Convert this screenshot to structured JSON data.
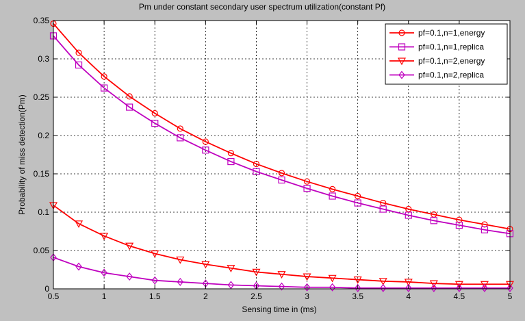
{
  "chart_data": {
    "type": "line",
    "title": "Pm under constant secondary user spectrum utilization(constant Pf)",
    "xlabel": "Sensing time in  (ms)",
    "ylabel": "Probability of miss detection(Pm)",
    "xlim": [
      0.5,
      5
    ],
    "ylim": [
      0,
      0.35
    ],
    "xticks": [
      0.5,
      1,
      1.5,
      2,
      2.5,
      3,
      3.5,
      4,
      4.5,
      5
    ],
    "yticks": [
      0,
      0.05,
      0.1,
      0.15,
      0.2,
      0.25,
      0.3,
      0.35
    ],
    "xtick_labels": [
      "0.5",
      "1",
      "1.5",
      "2",
      "2.5",
      "3",
      "3.5",
      "4",
      "4.5",
      "5"
    ],
    "ytick_labels": [
      "0",
      "0.05",
      "0.1",
      "0.15",
      "0.2",
      "0.25",
      "0.3",
      "0.35"
    ],
    "grid": true,
    "legend_position": "top-right",
    "x": [
      0.5,
      0.75,
      1,
      1.25,
      1.5,
      1.75,
      2,
      2.25,
      2.5,
      2.75,
      3,
      3.25,
      3.5,
      3.75,
      4,
      4.25,
      4.5,
      4.75,
      5
    ],
    "series": [
      {
        "name": "pf=0.1,n=1,energy",
        "color": "#ff0000",
        "marker": "circle",
        "values": [
          0.346,
          0.308,
          0.277,
          0.251,
          0.229,
          0.209,
          0.192,
          0.177,
          0.163,
          0.151,
          0.14,
          0.13,
          0.121,
          0.112,
          0.104,
          0.097,
          0.09,
          0.084,
          0.078
        ]
      },
      {
        "name": "pf=0.1,n=1,replica",
        "color": "#bf00bf",
        "marker": "square",
        "values": [
          0.33,
          0.292,
          0.262,
          0.237,
          0.216,
          0.197,
          0.181,
          0.166,
          0.153,
          0.142,
          0.131,
          0.121,
          0.112,
          0.104,
          0.096,
          0.089,
          0.083,
          0.077,
          0.072
        ]
      },
      {
        "name": "pf=0.1,n=2,energy",
        "color": "#ff0000",
        "marker": "triangle-down",
        "values": [
          0.109,
          0.085,
          0.069,
          0.056,
          0.046,
          0.038,
          0.032,
          0.027,
          0.022,
          0.019,
          0.016,
          0.014,
          0.012,
          0.01,
          0.009,
          0.007,
          0.006,
          0.006,
          0.006
        ]
      },
      {
        "name": "pf=0.1,n=2,replica",
        "color": "#bf00bf",
        "marker": "diamond",
        "values": [
          0.041,
          0.029,
          0.021,
          0.016,
          0.011,
          0.009,
          0.007,
          0.005,
          0.004,
          0.003,
          0.002,
          0.002,
          0.001,
          0.001,
          0.001,
          0.001,
          0.001,
          0.001,
          0.001
        ]
      }
    ]
  }
}
